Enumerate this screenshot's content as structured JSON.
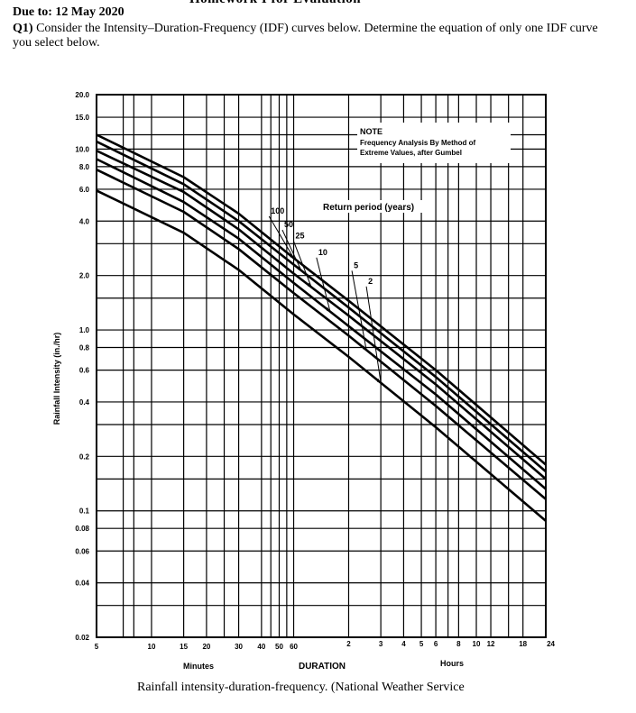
{
  "header": {
    "clipped_title": "Homework I for Evaluation",
    "due": "Due to: 12 May 2020",
    "question_number": "Q1)",
    "question_text": "Consider the Intensity–Duration-Frequency (IDF) curves below. Determine the equation of only one IDF curve you select below."
  },
  "caption": "Rainfall intensity-duration-frequency. (National Weather Service",
  "chart_data": {
    "type": "line",
    "title": "",
    "ylabel": "Rainfall Intensity (in./hr)",
    "xlabel": "DURATION",
    "x_unit_left": "Minutes",
    "x_unit_right": "Hours",
    "x_scale": "log",
    "y_scale": "log",
    "xlim_minutes": [
      5,
      1440
    ],
    "ylim": [
      0.02,
      20
    ],
    "grid": true,
    "y_ticks": [
      {
        "v": 20,
        "label": "20.0"
      },
      {
        "v": 15,
        "label": "15.0"
      },
      {
        "v": 10,
        "label": "10.0"
      },
      {
        "v": 8,
        "label": "8.0"
      },
      {
        "v": 6,
        "label": "6.0"
      },
      {
        "v": 4,
        "label": "4.0"
      },
      {
        "v": 2,
        "label": "2.0"
      },
      {
        "v": 1,
        "label": "1.0"
      },
      {
        "v": 0.8,
        "label": "0.8"
      },
      {
        "v": 0.6,
        "label": "0.6"
      },
      {
        "v": 0.4,
        "label": "0.4"
      },
      {
        "v": 0.2,
        "label": "0.2"
      },
      {
        "v": 0.1,
        "label": "0.1"
      },
      {
        "v": 0.08,
        "label": "0.08"
      },
      {
        "v": 0.06,
        "label": "0.06"
      },
      {
        "v": 0.04,
        "label": "0.04"
      },
      {
        "v": 0.02,
        "label": "0.02"
      }
    ],
    "x_ticks_minutes": [
      {
        "v": 5,
        "label": "5"
      },
      {
        "v": 10,
        "label": "10"
      },
      {
        "v": 15,
        "label": "15"
      },
      {
        "v": 20,
        "label": "20"
      },
      {
        "v": 30,
        "label": "30"
      },
      {
        "v": 40,
        "label": "40"
      },
      {
        "v": 50,
        "label": "50"
      },
      {
        "v": 60,
        "label": "60"
      }
    ],
    "x_ticks_hours": [
      {
        "v": 2,
        "label": "2"
      },
      {
        "v": 3,
        "label": "3"
      },
      {
        "v": 4,
        "label": "4"
      },
      {
        "v": 5,
        "label": "5"
      },
      {
        "v": 6,
        "label": "6"
      },
      {
        "v": 8,
        "label": "8"
      },
      {
        "v": 10,
        "label": "10"
      },
      {
        "v": 12,
        "label": "12"
      },
      {
        "v": 18,
        "label": "18"
      },
      {
        "v": 24,
        "label": "24"
      }
    ],
    "extra_vertical_gridlines_minutes": [
      7,
      8,
      25,
      45,
      55,
      420,
      900
    ],
    "extra_horizontal_gridlines": [
      12,
      3,
      1.5,
      0.3,
      0.15,
      0.03
    ],
    "note": {
      "title": "NOTE",
      "line1": "Frequency Analysis By Method of",
      "line2": "Extreme Values, after Gumbel"
    },
    "legend_title": "Return period (years)",
    "series": [
      {
        "name": "100",
        "points": [
          [
            5,
            12.0
          ],
          [
            15,
            7.0
          ],
          [
            30,
            4.4
          ],
          [
            60,
            2.5
          ],
          [
            120,
            1.45
          ],
          [
            360,
            0.6
          ],
          [
            1440,
            0.18
          ]
        ]
      },
      {
        "name": "50",
        "points": [
          [
            5,
            11.0
          ],
          [
            15,
            6.4
          ],
          [
            30,
            4.0
          ],
          [
            60,
            2.3
          ],
          [
            120,
            1.33
          ],
          [
            360,
            0.55
          ],
          [
            1440,
            0.165
          ]
        ]
      },
      {
        "name": "25",
        "points": [
          [
            5,
            9.8
          ],
          [
            15,
            5.8
          ],
          [
            30,
            3.6
          ],
          [
            60,
            2.05
          ],
          [
            120,
            1.2
          ],
          [
            360,
            0.5
          ],
          [
            1440,
            0.15
          ]
        ]
      },
      {
        "name": "10",
        "points": [
          [
            5,
            8.8
          ],
          [
            15,
            5.1
          ],
          [
            30,
            3.2
          ],
          [
            60,
            1.82
          ],
          [
            120,
            1.05
          ],
          [
            360,
            0.44
          ],
          [
            1440,
            0.132
          ]
        ]
      },
      {
        "name": "5",
        "points": [
          [
            5,
            7.7
          ],
          [
            15,
            4.5
          ],
          [
            30,
            2.8
          ],
          [
            60,
            1.6
          ],
          [
            120,
            0.93
          ],
          [
            360,
            0.38
          ],
          [
            1440,
            0.116
          ]
        ]
      },
      {
        "name": "2",
        "points": [
          [
            5,
            5.9
          ],
          [
            15,
            3.45
          ],
          [
            30,
            2.15
          ],
          [
            60,
            1.22
          ],
          [
            120,
            0.71
          ],
          [
            360,
            0.29
          ],
          [
            1440,
            0.088
          ]
        ]
      }
    ],
    "series_label_positions_minutes": [
      {
        "name": "100",
        "at": 60,
        "label_at": [
          44,
          4.4
        ]
      },
      {
        "name": "50",
        "at": 66,
        "label_at": [
          52,
          3.7
        ]
      },
      {
        "name": "25",
        "at": 75,
        "label_at": [
          60,
          3.2
        ]
      },
      {
        "name": "10",
        "at": 95,
        "label_at": [
          80,
          2.6
        ]
      },
      {
        "name": "5",
        "at": 150,
        "label_at": [
          125,
          2.2
        ]
      },
      {
        "name": "2",
        "at": 180,
        "label_at": [
          150,
          1.8
        ]
      }
    ]
  }
}
